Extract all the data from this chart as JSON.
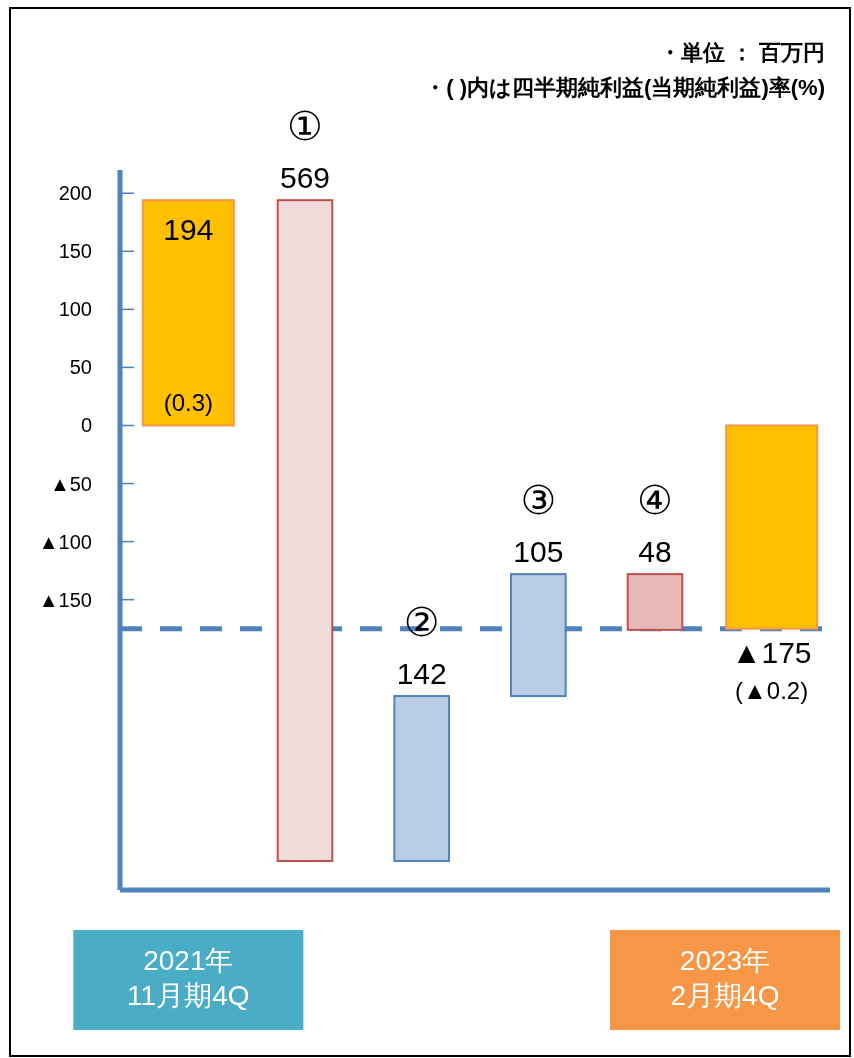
{
  "chart_data": {
    "type": "bar",
    "categories": [
      "2021年\n11月期4Q",
      null,
      null,
      null,
      null,
      "2023年\n2月期4Q"
    ],
    "values": [
      194,
      -569,
      142,
      105,
      -48,
      -175
    ],
    "base": [
      0,
      194,
      -375,
      -233,
      -128,
      0
    ],
    "colors": [
      "#ffc000",
      "#f2dcdb",
      "#b9cde5",
      "#b9cde5",
      "#e6b9b8",
      "#ffc000"
    ],
    "value_labels": [
      "194",
      "569",
      "142",
      "105",
      "48",
      "▲175"
    ],
    "ylim": [
      -400,
      220
    ],
    "yticks": [
      200,
      150,
      100,
      50,
      0,
      {
        "value": -50,
        "label": "▲50"
      },
      {
        "value": -100,
        "label": "▲100"
      },
      {
        "value": -150,
        "label": "▲150"
      }
    ],
    "ref_lines": [
      {
        "axis": "y",
        "value": -175,
        "color": "#4f81bd",
        "line_style": "dashed"
      }
    ],
    "annotations": [
      "・単位 ： 百万円",
      "・( )内は四半期純利益(当期純利益)率(%)",
      "(0.3)",
      "(▲0.2)",
      "①",
      "②",
      "③",
      "④"
    ]
  }
}
